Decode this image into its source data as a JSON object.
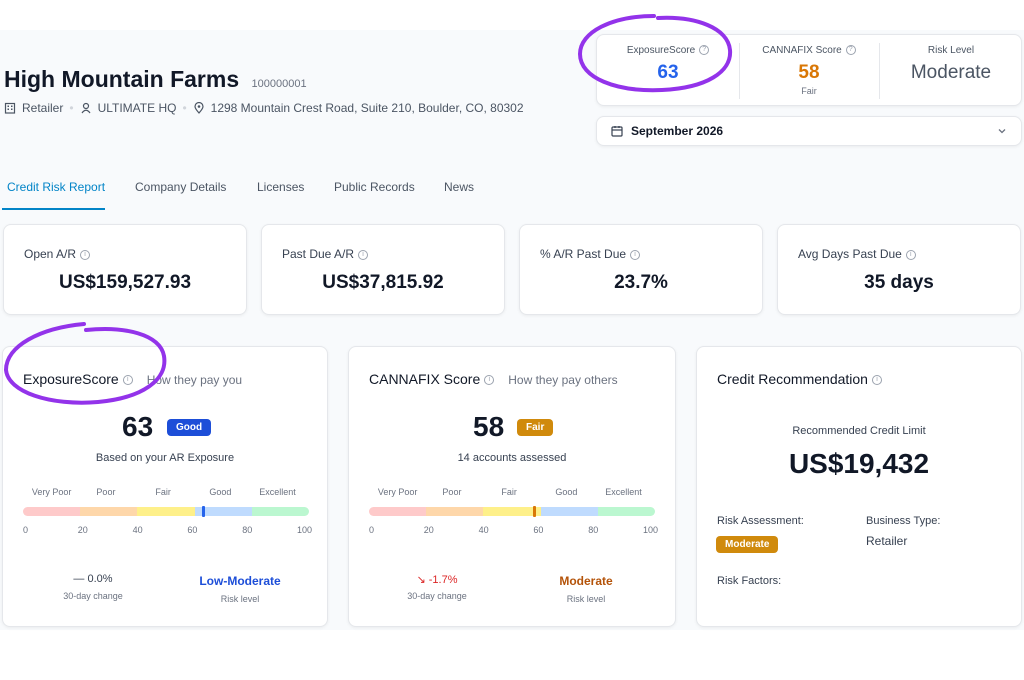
{
  "company": {
    "name": "High Mountain Farms",
    "id": "100000001",
    "type": "Retailer",
    "hq": "ULTIMATE HQ",
    "address": "1298 Mountain Crest Road, Suite 210, Boulder, CO, 80302"
  },
  "score_box": {
    "exposure_label": "ExposureScore",
    "exposure_value": "63",
    "cannafix_label": "CANNAFIX Score",
    "cannafix_value": "58",
    "cannafix_note": "Fair",
    "risk_label": "Risk Level",
    "risk_value": "Moderate"
  },
  "period": {
    "selected": "September 2026"
  },
  "tabs": [
    {
      "label": "Credit Risk Report",
      "active": true
    },
    {
      "label": "Company Details",
      "active": false
    },
    {
      "label": "Licenses",
      "active": false
    },
    {
      "label": "Public Records",
      "active": false
    },
    {
      "label": "News",
      "active": false
    }
  ],
  "stats": [
    {
      "label": "Open A/R",
      "value": "US$159,527.93"
    },
    {
      "label": "Past Due A/R",
      "value": "US$37,815.92"
    },
    {
      "label": "% A/R Past Due",
      "value": "23.7%"
    },
    {
      "label": "Avg Days Past Due",
      "value": "35 days"
    }
  ],
  "exposure_panel": {
    "title": "ExposureScore",
    "subtitle": "How they pay you",
    "score": "63",
    "score_num": 63,
    "badge": "Good",
    "caption": "Based on your AR Exposure",
    "change_value": "— 0.0%",
    "change_label": "30-day change",
    "risk_value": "Low-Moderate",
    "risk_label": "Risk level"
  },
  "cannafix_panel": {
    "title": "CANNAFIX Score",
    "subtitle": "How they pay others",
    "score": "58",
    "score_num": 58,
    "badge": "Fair",
    "caption": "14 accounts assessed",
    "change_value": "↘ -1.7%",
    "change_label": "30-day change",
    "risk_value": "Moderate",
    "risk_label": "Risk level"
  },
  "scale": {
    "labels": [
      "Very Poor",
      "Poor",
      "Fair",
      "Good",
      "Excellent"
    ],
    "ticks": [
      "0",
      "20",
      "40",
      "60",
      "80",
      "100"
    ]
  },
  "recommendation": {
    "title": "Credit Recommendation",
    "limit_label": "Recommended Credit Limit",
    "limit_value": "US$19,432",
    "assessment_label": "Risk Assessment:",
    "assessment_value": "Moderate",
    "business_label": "Business Type:",
    "business_value": "Retailer",
    "factors_label": "Risk Factors:"
  },
  "colors": {
    "accent_blue": "#1d4ed8",
    "exposure_blue": "#2563eb",
    "fair_amber": "#d97706",
    "badge_good": "#1d4ed8",
    "badge_fair": "#d08a0c",
    "down_red": "#dc2626",
    "annotation_purple": "#9333ea",
    "gauge": [
      "#fecaca",
      "#fed7aa",
      "#fef08a",
      "#bfdbfe",
      "#bbf7d0"
    ]
  },
  "icons": [
    "building-icon",
    "user-badge-icon",
    "location-pin-icon",
    "calendar-icon",
    "chevron-down-icon",
    "info-icon"
  ]
}
